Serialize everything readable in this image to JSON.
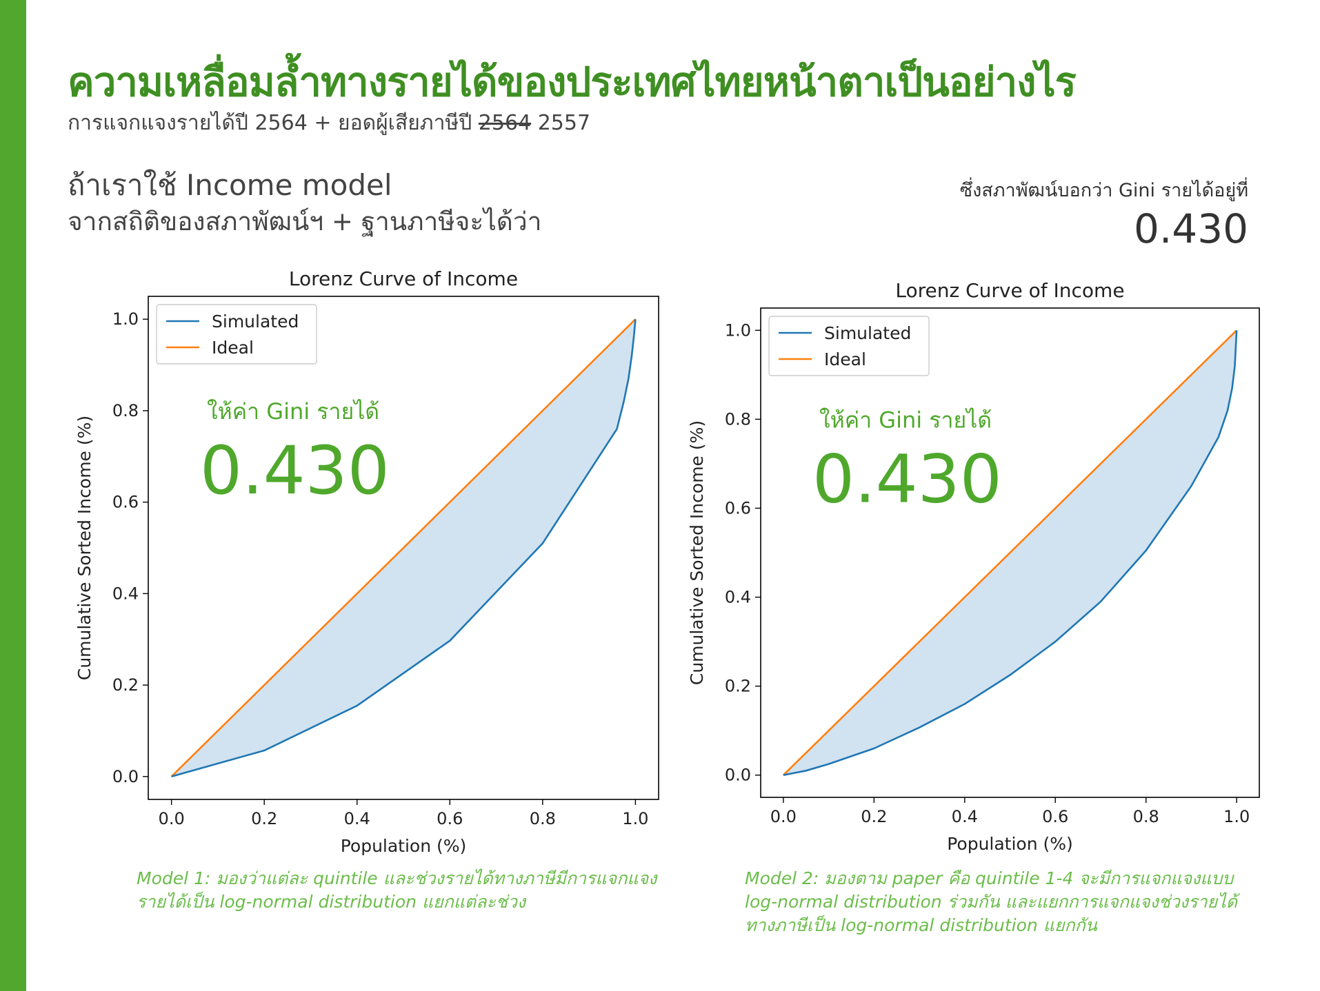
{
  "header": {
    "title": "ความเหลื่อมล้ำทางรายได้ของประเทศไทยหน้าตาเป็นอย่างไร",
    "subtitle_prefix": "การแจกแจงรายได้ปี 2564 + ยอดผู้เสียภาษีปี",
    "subtitle_struck": "2564",
    "subtitle_suffix": "2557",
    "lead_line1": "ถ้าเราใช้ Income model",
    "lead_line2": "จากสถิติของสภาพัฒน์ฯ + ฐานภาษีจะได้ว่า",
    "official_label": "ซึ่งสภาพัฒน์บอกว่า Gini รายได้อยู่ที่",
    "official_value": "0.430"
  },
  "colors": {
    "brand_green": "#52a82f",
    "title_green": "#3f8f22",
    "simulated": "#1f77b4",
    "ideal": "#ff7f0e",
    "fill": "#cfe0ef"
  },
  "chart_data": [
    {
      "type": "line",
      "title": "Lorenz Curve of Income",
      "xlabel": "Population (%)",
      "ylabel": "Cumulative Sorted Income (%)",
      "xlim": [
        -0.05,
        1.05
      ],
      "ylim": [
        -0.05,
        1.05
      ],
      "xticks": [
        "0.0",
        "0.2",
        "0.4",
        "0.6",
        "0.8",
        "1.0"
      ],
      "yticks": [
        "0.0",
        "0.2",
        "0.4",
        "0.6",
        "0.8",
        "1.0"
      ],
      "legend": "top-left",
      "grid": false,
      "series": [
        {
          "name": "Simulated",
          "color": "#1f77b4",
          "x": [
            0,
            0.2,
            0.4,
            0.6,
            0.8,
            0.96,
            0.975,
            0.985,
            0.992,
            0.997,
            1.0
          ],
          "y": [
            0,
            0.057,
            0.155,
            0.297,
            0.51,
            0.76,
            0.82,
            0.87,
            0.92,
            0.965,
            1.0
          ]
        },
        {
          "name": "Ideal",
          "color": "#ff7f0e",
          "x": [
            0,
            1
          ],
          "y": [
            0,
            1
          ]
        }
      ],
      "annotation_label": "ให้ค่า Gini รายได้",
      "annotation_value": "0.430",
      "caption": "Model 1: มองว่าแต่ละ quintile และช่วงรายได้ทางภาษีมีการแจกแจงรายได้เป็น log-normal distribution แยกแต่ละช่วง"
    },
    {
      "type": "line",
      "title": "Lorenz Curve of Income",
      "xlabel": "Population (%)",
      "ylabel": "Cumulative Sorted Income (%)",
      "xlim": [
        -0.05,
        1.05
      ],
      "ylim": [
        -0.05,
        1.05
      ],
      "xticks": [
        "0.0",
        "0.2",
        "0.4",
        "0.6",
        "0.8",
        "1.0"
      ],
      "yticks": [
        "0.0",
        "0.2",
        "0.4",
        "0.6",
        "0.8",
        "1.0"
      ],
      "legend": "top-left",
      "grid": false,
      "series": [
        {
          "name": "Simulated",
          "color": "#1f77b4",
          "x": [
            0,
            0.05,
            0.1,
            0.2,
            0.3,
            0.4,
            0.5,
            0.6,
            0.7,
            0.8,
            0.9,
            0.96,
            0.98,
            0.99,
            0.996,
            1.0
          ],
          "y": [
            0,
            0.01,
            0.025,
            0.06,
            0.107,
            0.16,
            0.225,
            0.3,
            0.39,
            0.505,
            0.65,
            0.76,
            0.82,
            0.87,
            0.92,
            1.0
          ]
        },
        {
          "name": "Ideal",
          "color": "#ff7f0e",
          "x": [
            0,
            1
          ],
          "y": [
            0,
            1
          ]
        }
      ],
      "annotation_label": "ให้ค่า Gini รายได้",
      "annotation_value": "0.430",
      "caption": "Model 2: มองตาม paper คือ quintile 1-4 จะมีการแจกแจงแบบ log-normal distribution ร่วมกัน และแยกการแจกแจงช่วงรายได้ทางภาษีเป็น log-normal distribution แยกกัน"
    }
  ]
}
